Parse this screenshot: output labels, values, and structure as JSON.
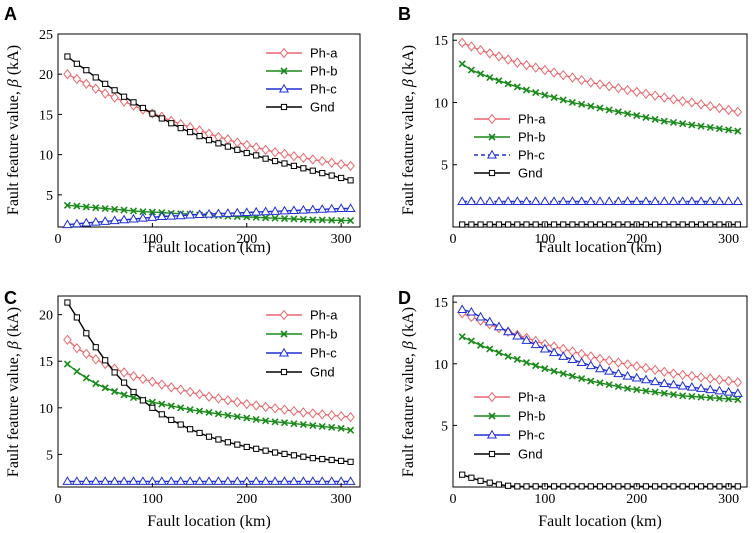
{
  "chart_data": [
    {
      "panel": "A",
      "type": "line",
      "xlabel": "Fault location (km)",
      "ylabel_text": "Fault feature value, ",
      "ylabel_symbol": "β",
      "ylabel_unit": " (kA)",
      "xlim": [
        0,
        320
      ],
      "ylim": [
        1,
        25
      ],
      "xticks": [
        0,
        100,
        200,
        300
      ],
      "yticks": [
        5,
        10,
        15,
        20,
        25
      ],
      "legend_position": "top-right",
      "x": [
        10,
        20,
        30,
        40,
        50,
        60,
        70,
        80,
        90,
        100,
        110,
        120,
        130,
        140,
        150,
        160,
        170,
        180,
        190,
        200,
        210,
        220,
        230,
        240,
        250,
        260,
        270,
        280,
        290,
        300,
        310
      ],
      "series": [
        {
          "name": "Ph-a",
          "color": "#e8696f",
          "marker": "diamond",
          "dashed": false,
          "values": [
            20.0,
            19.4,
            18.8,
            18.2,
            17.6,
            17.1,
            16.6,
            16.1,
            15.6,
            15.1,
            14.7,
            14.2,
            13.8,
            13.4,
            13.0,
            12.6,
            12.2,
            11.9,
            11.5,
            11.2,
            10.9,
            10.6,
            10.3,
            10.1,
            9.8,
            9.6,
            9.4,
            9.2,
            9.0,
            8.8,
            8.6
          ]
        },
        {
          "name": "Ph-b",
          "color": "#1a8a1a",
          "marker": "x",
          "dashed": false,
          "values": [
            3.7,
            3.6,
            3.5,
            3.4,
            3.3,
            3.2,
            3.1,
            3.0,
            2.9,
            2.85,
            2.8,
            2.7,
            2.65,
            2.6,
            2.5,
            2.45,
            2.4,
            2.35,
            2.3,
            2.25,
            2.2,
            2.15,
            2.1,
            2.05,
            2.0,
            1.95,
            1.9,
            1.88,
            1.85,
            1.82,
            1.8
          ]
        },
        {
          "name": "Ph-c",
          "color": "#1f2fd4",
          "marker": "triangle",
          "dashed": false,
          "values": [
            1.3,
            1.4,
            1.5,
            1.6,
            1.7,
            1.8,
            1.9,
            2.0,
            2.1,
            2.2,
            2.3,
            2.35,
            2.4,
            2.5,
            2.55,
            2.6,
            2.65,
            2.7,
            2.75,
            2.8,
            2.85,
            2.9,
            2.95,
            3.0,
            3.05,
            3.1,
            3.15,
            3.2,
            3.25,
            3.3,
            3.3
          ]
        },
        {
          "name": "Gnd",
          "color": "#000000",
          "marker": "square",
          "dashed": false,
          "values": [
            22.2,
            21.3,
            20.5,
            19.6,
            18.8,
            18.0,
            17.2,
            16.5,
            15.8,
            15.1,
            14.5,
            13.9,
            13.3,
            12.8,
            12.3,
            11.8,
            11.4,
            11.0,
            10.6,
            10.2,
            9.9,
            9.5,
            9.2,
            8.9,
            8.6,
            8.3,
            8.0,
            7.7,
            7.4,
            7.1,
            6.8
          ]
        }
      ]
    },
    {
      "panel": "B",
      "type": "line",
      "xlabel": "Fault location (km)",
      "ylabel_text": "Fault feature value, ",
      "ylabel_symbol": "β",
      "ylabel_unit": " (kA)",
      "xlim": [
        0,
        320
      ],
      "ylim": [
        0,
        15.5
      ],
      "xticks": [
        0,
        100,
        200,
        300
      ],
      "yticks": [
        5,
        10,
        15
      ],
      "legend_position": "middle-left",
      "x": [
        10,
        20,
        30,
        40,
        50,
        60,
        70,
        80,
        90,
        100,
        110,
        120,
        130,
        140,
        150,
        160,
        170,
        180,
        190,
        200,
        210,
        220,
        230,
        240,
        250,
        260,
        270,
        280,
        290,
        300,
        310
      ],
      "series": [
        {
          "name": "Ph-a",
          "color": "#e8696f",
          "marker": "diamond",
          "dashed": false,
          "values": [
            14.8,
            14.5,
            14.2,
            13.95,
            13.7,
            13.45,
            13.2,
            13.0,
            12.8,
            12.6,
            12.4,
            12.2,
            12.0,
            11.8,
            11.6,
            11.45,
            11.3,
            11.15,
            11.0,
            10.85,
            10.7,
            10.55,
            10.4,
            10.25,
            10.1,
            10.0,
            9.85,
            9.7,
            9.55,
            9.4,
            9.25
          ]
        },
        {
          "name": "Ph-b",
          "color": "#1a8a1a",
          "marker": "x",
          "dashed": false,
          "values": [
            13.1,
            12.6,
            12.3,
            12.0,
            11.75,
            11.5,
            11.25,
            11.0,
            10.8,
            10.6,
            10.4,
            10.2,
            10.0,
            9.85,
            9.7,
            9.55,
            9.4,
            9.25,
            9.1,
            8.95,
            8.8,
            8.65,
            8.5,
            8.4,
            8.3,
            8.2,
            8.1,
            8.0,
            7.9,
            7.8,
            7.7
          ]
        },
        {
          "name": "Ph-c",
          "color": "#1f2fd4",
          "marker": "triangle",
          "dashed": true,
          "values": [
            2.05,
            2.05,
            2.05,
            2.05,
            2.05,
            2.05,
            2.05,
            2.05,
            2.05,
            2.05,
            2.05,
            2.05,
            2.05,
            2.05,
            2.05,
            2.05,
            2.05,
            2.05,
            2.05,
            2.05,
            2.05,
            2.05,
            2.05,
            2.05,
            2.05,
            2.05,
            2.05,
            2.05,
            2.05,
            2.05,
            2.05
          ]
        },
        {
          "name": "Gnd",
          "color": "#000000",
          "marker": "square",
          "dashed": false,
          "values": [
            0.2,
            0.2,
            0.2,
            0.2,
            0.2,
            0.2,
            0.2,
            0.2,
            0.2,
            0.2,
            0.2,
            0.2,
            0.2,
            0.2,
            0.2,
            0.2,
            0.2,
            0.2,
            0.2,
            0.2,
            0.2,
            0.2,
            0.2,
            0.2,
            0.2,
            0.2,
            0.2,
            0.2,
            0.2,
            0.2,
            0.2
          ]
        }
      ]
    },
    {
      "panel": "C",
      "type": "line",
      "xlabel": "Fault location (km)",
      "ylabel_text": "Fault feature value, ",
      "ylabel_symbol": "β",
      "ylabel_unit": " (kA)",
      "xlim": [
        0,
        320
      ],
      "ylim": [
        1.5,
        22
      ],
      "xticks": [
        0,
        100,
        200,
        300
      ],
      "yticks": [
        5,
        10,
        15,
        20
      ],
      "legend_position": "top-right",
      "x": [
        10,
        20,
        30,
        40,
        50,
        60,
        70,
        80,
        90,
        100,
        110,
        120,
        130,
        140,
        150,
        160,
        170,
        180,
        190,
        200,
        210,
        220,
        230,
        240,
        250,
        260,
        270,
        280,
        290,
        300,
        310
      ],
      "series": [
        {
          "name": "Ph-a",
          "color": "#e8696f",
          "marker": "diamond",
          "dashed": false,
          "values": [
            17.3,
            16.4,
            15.8,
            15.2,
            14.7,
            14.2,
            13.8,
            13.4,
            13.1,
            12.8,
            12.5,
            12.2,
            11.95,
            11.7,
            11.45,
            11.2,
            11.0,
            10.8,
            10.6,
            10.4,
            10.25,
            10.1,
            9.95,
            9.8,
            9.65,
            9.5,
            9.4,
            9.3,
            9.2,
            9.1,
            9.0
          ]
        },
        {
          "name": "Ph-b",
          "color": "#1a8a1a",
          "marker": "x",
          "dashed": false,
          "values": [
            14.7,
            13.9,
            13.2,
            12.6,
            12.15,
            11.75,
            11.4,
            11.1,
            10.85,
            10.6,
            10.4,
            10.2,
            10.0,
            9.8,
            9.65,
            9.5,
            9.35,
            9.2,
            9.05,
            8.9,
            8.75,
            8.6,
            8.5,
            8.4,
            8.3,
            8.2,
            8.1,
            8.0,
            7.9,
            7.8,
            7.6
          ]
        },
        {
          "name": "Ph-c",
          "color": "#1f2fd4",
          "marker": "triangle",
          "dashed": false,
          "values": [
            2.1,
            2.1,
            2.1,
            2.1,
            2.1,
            2.1,
            2.1,
            2.1,
            2.1,
            2.1,
            2.1,
            2.1,
            2.1,
            2.1,
            2.1,
            2.1,
            2.1,
            2.1,
            2.1,
            2.1,
            2.1,
            2.1,
            2.1,
            2.1,
            2.1,
            2.1,
            2.1,
            2.1,
            2.1,
            2.1,
            2.1
          ]
        },
        {
          "name": "Gnd",
          "color": "#000000",
          "marker": "square",
          "dashed": false,
          "values": [
            21.3,
            19.7,
            18.0,
            16.5,
            15.1,
            13.8,
            12.7,
            11.7,
            10.8,
            10.0,
            9.3,
            8.7,
            8.2,
            7.7,
            7.3,
            6.9,
            6.6,
            6.3,
            6.05,
            5.8,
            5.6,
            5.4,
            5.2,
            5.05,
            4.9,
            4.75,
            4.6,
            4.5,
            4.4,
            4.3,
            4.2
          ]
        }
      ]
    },
    {
      "panel": "D",
      "type": "line",
      "xlabel": "Fault location (km)",
      "ylabel_text": "Fault feature value, ",
      "ylabel_symbol": "β",
      "ylabel_unit": " (kA)",
      "xlim": [
        0,
        320
      ],
      "ylim": [
        0,
        15.5
      ],
      "xticks": [
        0,
        100,
        200,
        300
      ],
      "yticks": [
        5,
        10,
        15
      ],
      "legend_position": "middle-left",
      "x": [
        10,
        20,
        30,
        40,
        50,
        60,
        70,
        80,
        90,
        100,
        110,
        120,
        130,
        140,
        150,
        160,
        170,
        180,
        190,
        200,
        210,
        220,
        230,
        240,
        250,
        260,
        270,
        280,
        290,
        300,
        310
      ],
      "series": [
        {
          "name": "Ph-a",
          "color": "#e8696f",
          "marker": "diamond",
          "dashed": false,
          "values": [
            14.1,
            13.8,
            13.5,
            13.2,
            12.9,
            12.6,
            12.35,
            12.1,
            11.85,
            11.6,
            11.4,
            11.2,
            11.0,
            10.8,
            10.6,
            10.4,
            10.25,
            10.1,
            9.95,
            9.8,
            9.65,
            9.5,
            9.35,
            9.2,
            9.1,
            9.0,
            8.9,
            8.8,
            8.7,
            8.6,
            8.5
          ]
        },
        {
          "name": "Ph-b",
          "color": "#1a8a1a",
          "marker": "x",
          "dashed": false,
          "values": [
            12.2,
            11.85,
            11.5,
            11.2,
            10.9,
            10.6,
            10.35,
            10.1,
            9.85,
            9.6,
            9.4,
            9.2,
            9.0,
            8.8,
            8.6,
            8.45,
            8.3,
            8.15,
            8.0,
            7.9,
            7.8,
            7.7,
            7.6,
            7.5,
            7.4,
            7.35,
            7.3,
            7.25,
            7.2,
            7.15,
            7.1
          ]
        },
        {
          "name": "Ph-c",
          "color": "#1f2fd4",
          "marker": "triangle",
          "dashed": false,
          "values": [
            14.4,
            14.2,
            13.8,
            13.4,
            13.0,
            12.6,
            12.25,
            11.9,
            11.55,
            11.2,
            10.9,
            10.6,
            10.35,
            10.1,
            9.85,
            9.6,
            9.4,
            9.2,
            9.0,
            8.85,
            8.7,
            8.55,
            8.4,
            8.3,
            8.2,
            8.1,
            8.0,
            7.9,
            7.8,
            7.7,
            7.6
          ]
        },
        {
          "name": "Gnd",
          "color": "#000000",
          "marker": "square",
          "dashed": false,
          "values": [
            1.0,
            0.75,
            0.5,
            0.35,
            0.2,
            0.1,
            0.05,
            0.05,
            0.05,
            0.05,
            0.05,
            0.05,
            0.05,
            0.05,
            0.05,
            0.05,
            0.05,
            0.05,
            0.05,
            0.05,
            0.05,
            0.05,
            0.05,
            0.05,
            0.05,
            0.05,
            0.05,
            0.05,
            0.05,
            0.05,
            0.05
          ]
        }
      ]
    }
  ]
}
